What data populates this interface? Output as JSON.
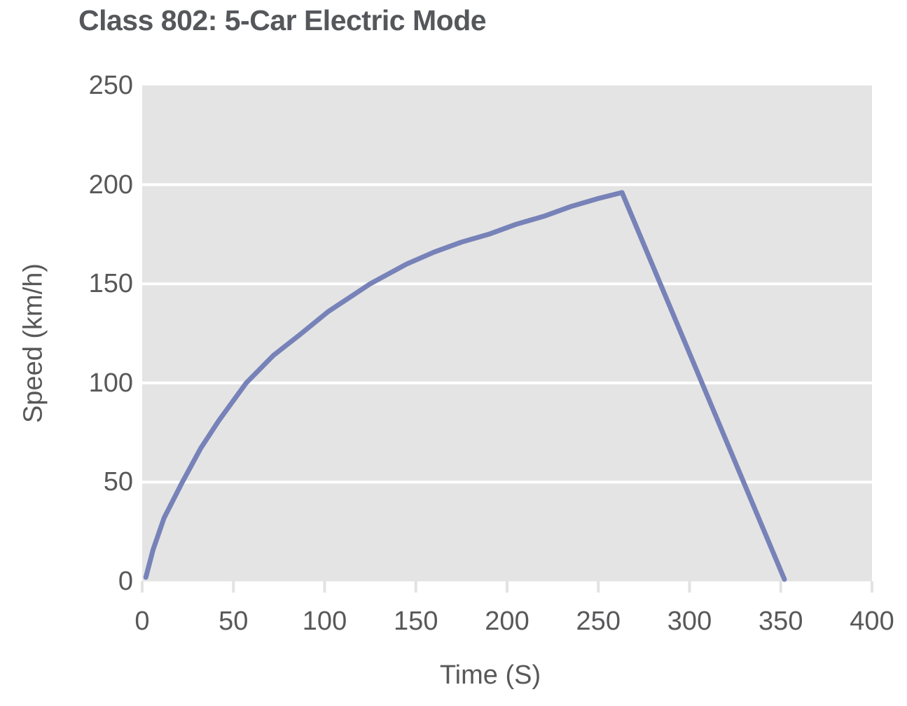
{
  "chart_data": {
    "type": "line",
    "title": "Class 802: 5-Car Electric Mode",
    "xlabel": "Time (S)",
    "ylabel": "Speed (km/h)",
    "xlim": [
      0,
      400
    ],
    "ylim": [
      0,
      250
    ],
    "x_ticks": [
      0,
      50,
      100,
      150,
      200,
      250,
      300,
      350,
      400
    ],
    "y_ticks": [
      0,
      50,
      100,
      150,
      200,
      250
    ],
    "grid": {
      "horizontal": true,
      "vertical": false
    },
    "legend": "none",
    "colors": {
      "panel": "#e4e4e4",
      "gridline": "#ffffff",
      "tick_mark": "#e2e2e2",
      "text": "#58585a",
      "title": "#55575b",
      "line": "#7782b8"
    },
    "series": [
      {
        "name": "speed",
        "color": "#7782b8",
        "points": [
          [
            2,
            2
          ],
          [
            6,
            16
          ],
          [
            12,
            32
          ],
          [
            22,
            50
          ],
          [
            32,
            67
          ],
          [
            42,
            81
          ],
          [
            57,
            100
          ],
          [
            72,
            114
          ],
          [
            86,
            124
          ],
          [
            102,
            136
          ],
          [
            125,
            150
          ],
          [
            145,
            160
          ],
          [
            160,
            166
          ],
          [
            175,
            171
          ],
          [
            190,
            175
          ],
          [
            205,
            180
          ],
          [
            220,
            184
          ],
          [
            235,
            189
          ],
          [
            250,
            193
          ],
          [
            263,
            196
          ],
          [
            352,
            1
          ]
        ]
      }
    ]
  }
}
